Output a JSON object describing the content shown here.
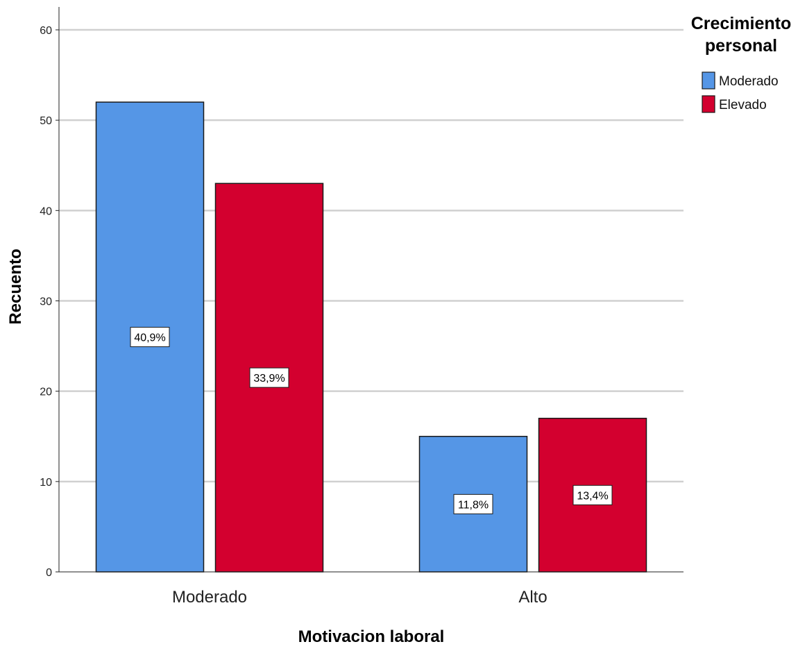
{
  "chart_data": {
    "type": "bar",
    "xlabel": "Motivacion laboral",
    "ylabel": "Recuento",
    "categories": [
      "Moderado",
      "Alto"
    ],
    "series": [
      {
        "name": "Moderado",
        "color": "#5596e6",
        "values": [
          52,
          15
        ],
        "labels": [
          "40,9%",
          "11,8%"
        ]
      },
      {
        "name": "Elevado",
        "color": "#d3002f",
        "values": [
          43,
          17
        ],
        "labels": [
          "33,9%",
          "13,4%"
        ]
      }
    ],
    "ylim": [
      0,
      60
    ],
    "yticks": [
      "0",
      "10",
      "20",
      "30",
      "40",
      "50",
      "60"
    ],
    "grid": true,
    "legend": {
      "title_lines": [
        "Crecimiento",
        "personal"
      ],
      "position": "top-right"
    }
  }
}
